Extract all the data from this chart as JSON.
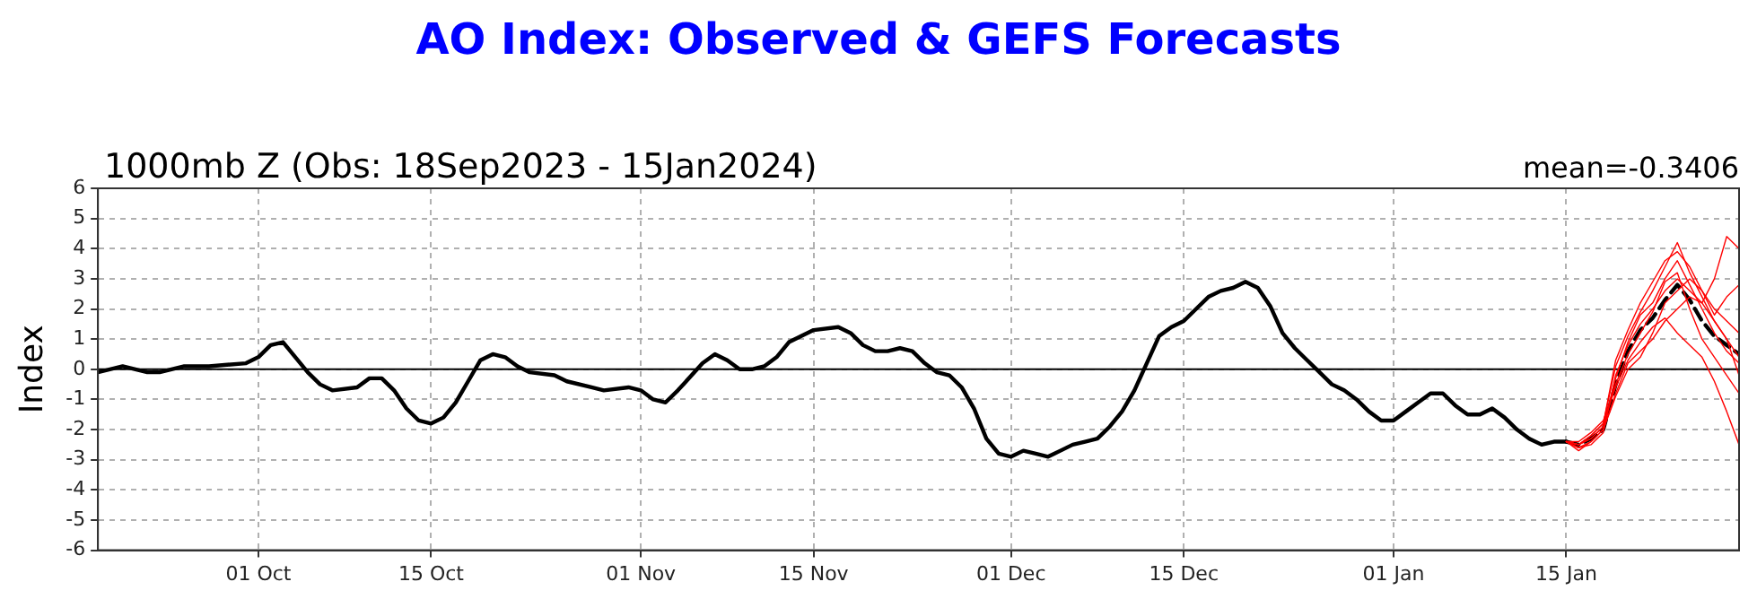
{
  "chart_data": {
    "type": "line",
    "title": "AO Index: Observed & GEFS Forecasts",
    "subtitle": "1000mb Z (Obs: 18Sep2023 - 15Jan2024)",
    "ylabel": "Index",
    "annotations": [
      "mean=-0.3406"
    ],
    "xlim": [
      "2023-09-18",
      "2024-01-29"
    ],
    "xticks": [
      {
        "value": "2023-10-01",
        "label": "01 Oct"
      },
      {
        "value": "2023-10-15",
        "label": "15 Oct"
      },
      {
        "value": "2023-11-01",
        "label": "01 Nov"
      },
      {
        "value": "2023-11-15",
        "label": "15 Nov"
      },
      {
        "value": "2023-12-01",
        "label": "01 Dec"
      },
      {
        "value": "2023-12-15",
        "label": "15 Dec"
      },
      {
        "value": "2024-01-01",
        "label": "01 Jan"
      },
      {
        "value": "2024-01-15",
        "label": "15 Jan"
      }
    ],
    "ylim": [
      -6,
      6
    ],
    "yticks": [
      -6,
      -5,
      -4,
      -3,
      -2,
      -1,
      0,
      1,
      2,
      3,
      4,
      5,
      6
    ],
    "grid": true,
    "legend": false,
    "marker": "none",
    "line_style": "solid",
    "ref_lines": [
      {
        "axis": "y",
        "value": 0,
        "color": "#000000"
      }
    ],
    "series": [
      {
        "color": "#ff0000",
        "x": [
          "2024-01-15",
          "2024-01-16",
          "2024-01-17",
          "2024-01-18",
          "2024-01-19",
          "2024-01-20",
          "2024-01-21",
          "2024-01-22",
          "2024-01-23",
          "2024-01-24",
          "2024-01-25",
          "2024-01-26",
          "2024-01-27",
          "2024-01-28",
          "2024-01-29"
        ],
        "values": [
          -2.4,
          -2.5,
          -2.3,
          -1.9,
          -0.3,
          0.9,
          1.8,
          2.2,
          3.0,
          3.6,
          2.8,
          2.0,
          1.2,
          0.6,
          0.2
        ]
      },
      {
        "color": "#ff0000",
        "x": [
          "2024-01-15",
          "2024-01-16",
          "2024-01-17",
          "2024-01-18",
          "2024-01-19",
          "2024-01-20",
          "2024-01-21",
          "2024-01-22",
          "2024-01-23",
          "2024-01-24",
          "2024-01-25",
          "2024-01-26",
          "2024-01-27",
          "2024-01-28",
          "2024-01-29"
        ],
        "values": [
          -2.4,
          -2.6,
          -2.4,
          -2.0,
          -0.8,
          0.2,
          0.6,
          1.0,
          1.6,
          2.0,
          2.4,
          2.2,
          1.6,
          1.0,
          0.4
        ]
      },
      {
        "color": "#ff0000",
        "x": [
          "2024-01-15",
          "2024-01-16",
          "2024-01-17",
          "2024-01-18",
          "2024-01-19",
          "2024-01-20",
          "2024-01-21",
          "2024-01-22",
          "2024-01-23",
          "2024-01-24",
          "2024-01-25",
          "2024-01-26",
          "2024-01-27",
          "2024-01-28",
          "2024-01-29"
        ],
        "values": [
          -2.4,
          -2.5,
          -2.2,
          -1.8,
          0.1,
          1.1,
          1.9,
          2.6,
          3.4,
          4.2,
          3.2,
          2.4,
          1.6,
          1.0,
          -0.2
        ]
      },
      {
        "color": "#ff0000",
        "x": [
          "2024-01-15",
          "2024-01-16",
          "2024-01-17",
          "2024-01-18",
          "2024-01-19",
          "2024-01-20",
          "2024-01-21",
          "2024-01-22",
          "2024-01-23",
          "2024-01-24",
          "2024-01-25",
          "2024-01-26",
          "2024-01-27",
          "2024-01-28",
          "2024-01-29"
        ],
        "values": [
          -2.4,
          -2.4,
          -2.1,
          -1.7,
          -0.6,
          0.3,
          0.9,
          1.4,
          1.7,
          1.2,
          0.8,
          0.4,
          -0.4,
          -1.4,
          -2.5
        ]
      },
      {
        "color": "#ff0000",
        "x": [
          "2024-01-15",
          "2024-01-16",
          "2024-01-17",
          "2024-01-18",
          "2024-01-19",
          "2024-01-20",
          "2024-01-21",
          "2024-01-22",
          "2024-01-23",
          "2024-01-24",
          "2024-01-25",
          "2024-01-26",
          "2024-01-27",
          "2024-01-28",
          "2024-01-29"
        ],
        "values": [
          -2.4,
          -2.6,
          -2.5,
          -2.1,
          -0.2,
          0.8,
          1.5,
          2.0,
          2.6,
          3.0,
          2.6,
          2.2,
          3.0,
          4.4,
          4.0
        ]
      },
      {
        "color": "#ff0000",
        "x": [
          "2024-01-15",
          "2024-01-16",
          "2024-01-17",
          "2024-01-18",
          "2024-01-19",
          "2024-01-20",
          "2024-01-21",
          "2024-01-22",
          "2024-01-23",
          "2024-01-24",
          "2024-01-25",
          "2024-01-26",
          "2024-01-27",
          "2024-01-28",
          "2024-01-29"
        ],
        "values": [
          -2.4,
          -2.5,
          -2.3,
          -1.9,
          -0.5,
          0.5,
          1.2,
          1.9,
          2.9,
          3.2,
          2.0,
          1.0,
          0.4,
          -0.2,
          -0.8
        ]
      },
      {
        "color": "#ff0000",
        "x": [
          "2024-01-15",
          "2024-01-16",
          "2024-01-17",
          "2024-01-18",
          "2024-01-19",
          "2024-01-20",
          "2024-01-21",
          "2024-01-22",
          "2024-01-23",
          "2024-01-24",
          "2024-01-25",
          "2024-01-26",
          "2024-01-27",
          "2024-01-28",
          "2024-01-29"
        ],
        "values": [
          -2.4,
          -2.7,
          -2.4,
          -2.0,
          -0.9,
          0.0,
          0.4,
          1.2,
          2.2,
          2.6,
          3.0,
          2.6,
          2.0,
          1.6,
          1.2
        ]
      },
      {
        "color": "#ff0000",
        "x": [
          "2024-01-15",
          "2024-01-16",
          "2024-01-17",
          "2024-01-18",
          "2024-01-19",
          "2024-01-20",
          "2024-01-21",
          "2024-01-22",
          "2024-01-23",
          "2024-01-24",
          "2024-01-25",
          "2024-01-26",
          "2024-01-27",
          "2024-01-28",
          "2024-01-29"
        ],
        "values": [
          -2.4,
          -2.5,
          -2.2,
          -1.8,
          0.3,
          1.3,
          2.2,
          2.9,
          3.6,
          3.9,
          3.4,
          2.6,
          1.8,
          2.4,
          2.8
        ]
      },
      {
        "color": "#000000",
        "x": [
          "2023-09-18",
          "2023-09-20",
          "2023-09-22",
          "2023-09-23",
          "2023-09-25",
          "2023-09-27",
          "2023-09-30",
          "2023-10-01",
          "2023-10-02",
          "2023-10-03",
          "2023-10-04",
          "2023-10-05",
          "2023-10-06",
          "2023-10-07",
          "2023-10-09",
          "2023-10-10",
          "2023-10-11",
          "2023-10-12",
          "2023-10-13",
          "2023-10-14",
          "2023-10-15",
          "2023-10-16",
          "2023-10-17",
          "2023-10-18",
          "2023-10-19",
          "2023-10-20",
          "2023-10-21",
          "2023-10-22",
          "2023-10-23",
          "2023-10-25",
          "2023-10-26",
          "2023-10-28",
          "2023-10-29",
          "2023-10-31",
          "2023-11-01",
          "2023-11-02",
          "2023-11-03",
          "2023-11-04",
          "2023-11-06",
          "2023-11-07",
          "2023-11-08",
          "2023-11-09",
          "2023-11-10",
          "2023-11-11",
          "2023-11-12",
          "2023-11-13",
          "2023-11-14",
          "2023-11-15",
          "2023-11-17",
          "2023-11-18",
          "2023-11-19",
          "2023-11-20",
          "2023-11-21",
          "2023-11-22",
          "2023-11-23",
          "2023-11-24",
          "2023-11-25",
          "2023-11-26",
          "2023-11-27",
          "2023-11-28",
          "2023-11-29",
          "2023-11-30",
          "2023-12-01",
          "2023-12-02",
          "2023-12-03",
          "2023-12-04",
          "2023-12-05",
          "2023-12-06",
          "2023-12-07",
          "2023-12-08",
          "2023-12-09",
          "2023-12-10",
          "2023-12-11",
          "2023-12-12",
          "2023-12-13",
          "2023-12-14",
          "2023-12-15",
          "2023-12-16",
          "2023-12-17",
          "2023-12-18",
          "2023-12-19",
          "2023-12-20",
          "2023-12-21",
          "2023-12-22",
          "2023-12-23",
          "2023-12-24",
          "2023-12-25",
          "2023-12-26",
          "2023-12-27",
          "2023-12-28",
          "2023-12-29",
          "2023-12-30",
          "2023-12-31",
          "2024-01-01",
          "2024-01-02",
          "2024-01-03",
          "2024-01-04",
          "2024-01-05",
          "2024-01-06",
          "2024-01-07",
          "2024-01-08",
          "2024-01-09",
          "2024-01-10",
          "2024-01-11",
          "2024-01-12",
          "2024-01-13",
          "2024-01-14",
          "2024-01-15"
        ],
        "values": [
          -0.1,
          0.1,
          -0.1,
          -0.1,
          0.1,
          0.1,
          0.2,
          0.4,
          0.8,
          0.9,
          0.4,
          -0.1,
          -0.5,
          -0.7,
          -0.6,
          -0.3,
          -0.3,
          -0.7,
          -1.3,
          -1.7,
          -1.8,
          -1.6,
          -1.1,
          -0.4,
          0.3,
          0.5,
          0.4,
          0.1,
          -0.1,
          -0.2,
          -0.4,
          -0.6,
          -0.7,
          -0.6,
          -0.7,
          -1.0,
          -1.1,
          -0.7,
          0.2,
          0.5,
          0.3,
          0.0,
          0.0,
          0.1,
          0.4,
          0.9,
          1.1,
          1.3,
          1.4,
          1.2,
          0.8,
          0.6,
          0.6,
          0.7,
          0.6,
          0.2,
          -0.1,
          -0.2,
          -0.6,
          -1.3,
          -2.3,
          -2.8,
          -2.9,
          -2.7,
          -2.8,
          -2.9,
          -2.7,
          -2.5,
          -2.4,
          -2.3,
          -1.9,
          -1.4,
          -0.7,
          0.2,
          1.1,
          1.4,
          1.6,
          2.0,
          2.4,
          2.6,
          2.7,
          2.9,
          2.7,
          2.1,
          1.2,
          0.7,
          0.3,
          -0.1,
          -0.5,
          -0.7,
          -1.0,
          -1.4,
          -1.7,
          -1.7,
          -1.4,
          -1.1,
          -0.8,
          -0.8,
          -1.2,
          -1.5,
          -1.5,
          -1.3,
          -1.6,
          -2.0,
          -2.3,
          -2.5,
          -2.4,
          -2.4
        ]
      },
      {
        "color": "#000000",
        "line_style": "dashed",
        "x": [
          "2024-01-15",
          "2024-01-16",
          "2024-01-17",
          "2024-01-18",
          "2024-01-19",
          "2024-01-20",
          "2024-01-21",
          "2024-01-22",
          "2024-01-23",
          "2024-01-24",
          "2024-01-25",
          "2024-01-26",
          "2024-01-27",
          "2024-01-28",
          "2024-01-29"
        ],
        "values": [
          -2.4,
          -2.5,
          -2.3,
          -2.0,
          -0.5,
          0.6,
          1.3,
          1.7,
          2.3,
          2.8,
          2.3,
          1.6,
          1.1,
          0.8,
          0.5
        ]
      }
    ]
  }
}
